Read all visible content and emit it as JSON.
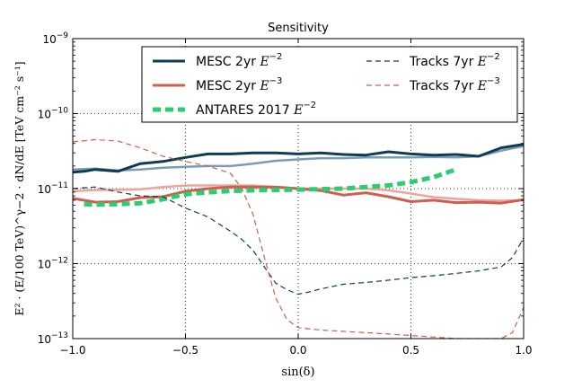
{
  "chart_data": {
    "type": "line",
    "title": "Sensitivity",
    "xlabel": "sin(δ)",
    "ylabel": "E² · (E/100 TeV)^γ−2 · dN/dE  [TeV cm⁻² s⁻¹]",
    "xlim": [
      -1.0,
      1.0
    ],
    "ylim": [
      1e-13,
      1e-09
    ],
    "yscale": "log",
    "grid": true,
    "legend_position": "top",
    "x_ticks": [
      "−1.0",
      "−0.5",
      "0.0",
      "0.5",
      "1.0"
    ],
    "x_tick_values": [
      -1.0,
      -0.5,
      0.0,
      0.5,
      1.0
    ],
    "y_ticks": [
      {
        "base": "10",
        "exp": "−9",
        "value": 1e-09
      },
      {
        "base": "10",
        "exp": "−10",
        "value": 1e-10
      },
      {
        "base": "10",
        "exp": "−11",
        "value": 1e-11
      },
      {
        "base": "10",
        "exp": "−12",
        "value": 1e-12
      },
      {
        "base": "10",
        "exp": "−13",
        "value": 1e-13
      }
    ],
    "series": [
      {
        "name": "MESC 2yr E⁻²",
        "legend_base": "MESC 2yr ",
        "legend_exp": "−2",
        "color": "#0d3d56",
        "style": "solid",
        "width": 3,
        "in_legend": true,
        "x": [
          -1.0,
          -0.95,
          -0.9,
          -0.8,
          -0.7,
          -0.6,
          -0.5,
          -0.4,
          -0.3,
          -0.2,
          -0.1,
          0.0,
          0.1,
          0.2,
          0.3,
          0.4,
          0.5,
          0.6,
          0.7,
          0.8,
          0.9,
          1.0
        ],
        "y": [
          1.65e-11,
          1.7e-11,
          1.8e-11,
          1.7e-11,
          2.15e-11,
          2.3e-11,
          2.6e-11,
          2.9e-11,
          2.9e-11,
          3e-11,
          3e-11,
          2.9e-11,
          3e-11,
          2.85e-11,
          2.8e-11,
          3.1e-11,
          2.9e-11,
          2.8e-11,
          2.85e-11,
          2.7e-11,
          3.5e-11,
          3.9e-11
        ]
      },
      {
        "name": "MESC 2yr E⁻² (lighter)",
        "color": "#7a9db2",
        "style": "solid",
        "width": 2.5,
        "in_legend": false,
        "x": [
          -1.0,
          -0.9,
          -0.8,
          -0.7,
          -0.6,
          -0.5,
          -0.4,
          -0.3,
          -0.2,
          -0.1,
          0.0,
          0.1,
          0.2,
          0.3,
          0.4,
          0.5,
          0.6,
          0.7,
          0.8,
          0.9,
          1.0
        ],
        "y": [
          1.8e-11,
          1.85e-11,
          1.75e-11,
          1.8e-11,
          1.9e-11,
          1.95e-11,
          2e-11,
          2e-11,
          2.15e-11,
          2.35e-11,
          2.45e-11,
          2.55e-11,
          2.55e-11,
          2.6e-11,
          2.6e-11,
          2.6e-11,
          2.65e-11,
          2.6e-11,
          2.7e-11,
          3.2e-11,
          3.7e-11
        ]
      },
      {
        "name": "MESC 2yr E⁻³",
        "legend_base": "MESC 2yr ",
        "legend_exp": "−3",
        "color": "#cc5f4f",
        "style": "solid",
        "width": 3,
        "in_legend": true,
        "x": [
          -1.0,
          -0.9,
          -0.8,
          -0.7,
          -0.6,
          -0.5,
          -0.4,
          -0.3,
          -0.2,
          -0.1,
          0.0,
          0.1,
          0.2,
          0.3,
          0.4,
          0.5,
          0.6,
          0.7,
          0.8,
          0.9,
          1.0
        ],
        "y": [
          7.4e-12,
          6.6e-12,
          6.7e-12,
          7.6e-12,
          7.8e-12,
          9.2e-12,
          1e-11,
          1.05e-11,
          1.05e-11,
          1.05e-11,
          1e-11,
          9.4e-12,
          8.2e-12,
          8.8e-12,
          7.8e-12,
          6.7e-12,
          7e-12,
          6.5e-12,
          6.6e-12,
          6.4e-12,
          7.1e-12
        ]
      },
      {
        "name": "MESC 2yr E⁻³ (lighter)",
        "color": "#eda59b",
        "style": "solid",
        "width": 2.5,
        "in_legend": false,
        "x": [
          -1.0,
          -0.9,
          -0.8,
          -0.7,
          -0.6,
          -0.5,
          -0.4,
          -0.3,
          -0.2,
          -0.1,
          0.0,
          0.1,
          0.2,
          0.3,
          0.4,
          0.5,
          0.6,
          0.7,
          0.8,
          0.9,
          1.0
        ],
        "y": [
          9.2e-12,
          9.6e-12,
          9.6e-12,
          9.8e-12,
          1.05e-11,
          1.1e-11,
          1.1e-11,
          1.1e-11,
          1.1e-11,
          1.05e-11,
          1e-11,
          1e-11,
          1e-11,
          1e-11,
          9.5e-12,
          8.6e-12,
          7.7e-12,
          7.3e-12,
          7e-12,
          6.9e-12,
          7e-12
        ]
      },
      {
        "name": "ANTARES 2017 E⁻²",
        "legend_base": "ANTARES 2017 ",
        "legend_exp": "−2",
        "color": "#2ecc71",
        "style": "dashed-thick",
        "width": 5,
        "in_legend": true,
        "x": [
          -0.95,
          -0.9,
          -0.8,
          -0.7,
          -0.6,
          -0.55,
          -0.5,
          -0.4,
          -0.3,
          -0.2,
          -0.1,
          0.0,
          0.1,
          0.2,
          0.3,
          0.4,
          0.5,
          0.6,
          0.7
        ],
        "y": [
          6.2e-12,
          6.1e-12,
          6.2e-12,
          6.4e-12,
          7.2e-12,
          7.8e-12,
          8.4e-12,
          8.9e-12,
          9.3e-12,
          9.5e-12,
          9.6e-12,
          9.7e-12,
          9.8e-12,
          1e-11,
          1.05e-11,
          1.1e-11,
          1.22e-11,
          1.42e-11,
          1.8e-11
        ]
      },
      {
        "name": "Tracks 7yr E⁻²",
        "legend_base": "Tracks 7yr ",
        "legend_exp": "−2",
        "color": "#0d3d56",
        "style": "dashed",
        "width": 1.2,
        "in_legend": true,
        "x": [
          -1.0,
          -0.9,
          -0.8,
          -0.7,
          -0.6,
          -0.5,
          -0.4,
          -0.3,
          -0.25,
          -0.2,
          -0.15,
          -0.1,
          -0.05,
          0.0,
          0.05,
          0.1,
          0.2,
          0.3,
          0.4,
          0.5,
          0.6,
          0.7,
          0.8,
          0.9,
          0.95,
          1.0
        ],
        "y": [
          1e-11,
          1.05e-11,
          9e-12,
          8e-12,
          7.8e-12,
          5.5e-12,
          4.2e-12,
          2.7e-12,
          2.1e-12,
          1.5e-12,
          9e-13,
          5.5e-13,
          4.5e-13,
          3.9e-13,
          4.2e-13,
          4.6e-13,
          5.3e-13,
          5.6e-13,
          6e-13,
          6.5e-13,
          6.9e-13,
          7.4e-13,
          8e-13,
          9e-13,
          1.2e-12,
          2.2e-12
        ]
      },
      {
        "name": "Tracks 7yr E⁻³",
        "legend_base": "Tracks 7yr ",
        "legend_exp": "−3",
        "color": "#cc5f4f",
        "style": "dashed",
        "width": 1.2,
        "in_legend": true,
        "x": [
          -1.0,
          -0.9,
          -0.8,
          -0.7,
          -0.6,
          -0.5,
          -0.4,
          -0.3,
          -0.25,
          -0.2,
          -0.15,
          -0.1,
          -0.05,
          0.0,
          0.1,
          0.2,
          0.3,
          0.4,
          0.5,
          0.6,
          0.7,
          0.8,
          0.9,
          0.95,
          1.0
        ],
        "y": [
          4.2e-11,
          4.5e-11,
          4.3e-11,
          3.5e-11,
          2.7e-11,
          2.3e-11,
          2e-11,
          1.6e-11,
          1e-11,
          4.5e-12,
          1.2e-12,
          3.5e-13,
          1.8e-13,
          1.4e-13,
          1.3e-13,
          1.25e-13,
          1.2e-13,
          1.15e-13,
          1.1e-13,
          1.05e-13,
          1e-13,
          1e-13,
          1e-13,
          1.2e-13,
          2.6e-13
        ]
      }
    ]
  }
}
